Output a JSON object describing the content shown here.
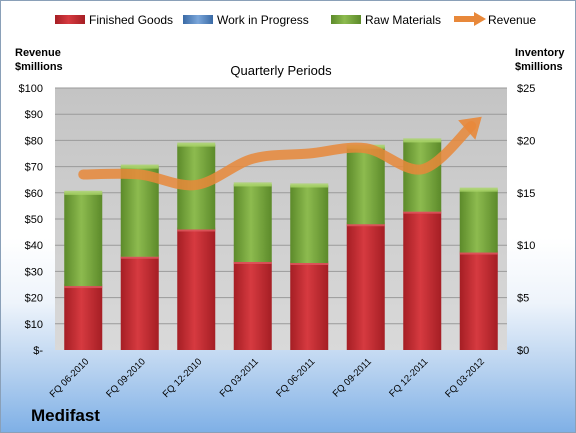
{
  "company": "Medifast",
  "chart_data": {
    "type": "bar",
    "subtitle": "Quarterly Periods",
    "left_axis_label": [
      "Revenue",
      "$millions"
    ],
    "right_axis_label": [
      "Inventory",
      "$millions"
    ],
    "left_ticks": [
      "$-",
      "$10",
      "$20",
      "$30",
      "$40",
      "$50",
      "$60",
      "$70",
      "$80",
      "$90",
      "$100"
    ],
    "right_ticks": [
      "$0",
      "$5",
      "$10",
      "$15",
      "$20",
      "$25"
    ],
    "ylim_left": [
      0,
      100
    ],
    "ylim_right": [
      0,
      25
    ],
    "categories": [
      "FQ 06-2010",
      "FQ 09-2010",
      "FQ 12-2010",
      "FQ 03-2011",
      "FQ 06-2011",
      "FQ 09-2011",
      "FQ 12-2011",
      "FQ 03-2012"
    ],
    "legend": [
      "Finished Goods",
      "Work in Progress",
      "Raw Materials",
      "Revenue"
    ],
    "series": [
      {
        "name": "Finished Goods",
        "axis": "right",
        "color": "#c0272d",
        "values": [
          6.1,
          8.9,
          11.5,
          8.4,
          8.3,
          12.0,
          13.2,
          9.3
        ]
      },
      {
        "name": "Work in Progress",
        "axis": "right",
        "color": "#4f81bd",
        "values": [
          0,
          0,
          0,
          0,
          0,
          0,
          0,
          0
        ]
      },
      {
        "name": "Raw Materials",
        "axis": "right",
        "color": "#76a33c",
        "values": [
          8.9,
          8.6,
          8.1,
          7.4,
          7.4,
          7.4,
          6.8,
          6.0
        ]
      },
      {
        "name": "Revenue",
        "axis": "left",
        "type": "line",
        "color": "#e8883a",
        "values": [
          67,
          67,
          63,
          73,
          75,
          77,
          69,
          88
        ]
      }
    ],
    "grid": true,
    "legend_position": "top"
  }
}
